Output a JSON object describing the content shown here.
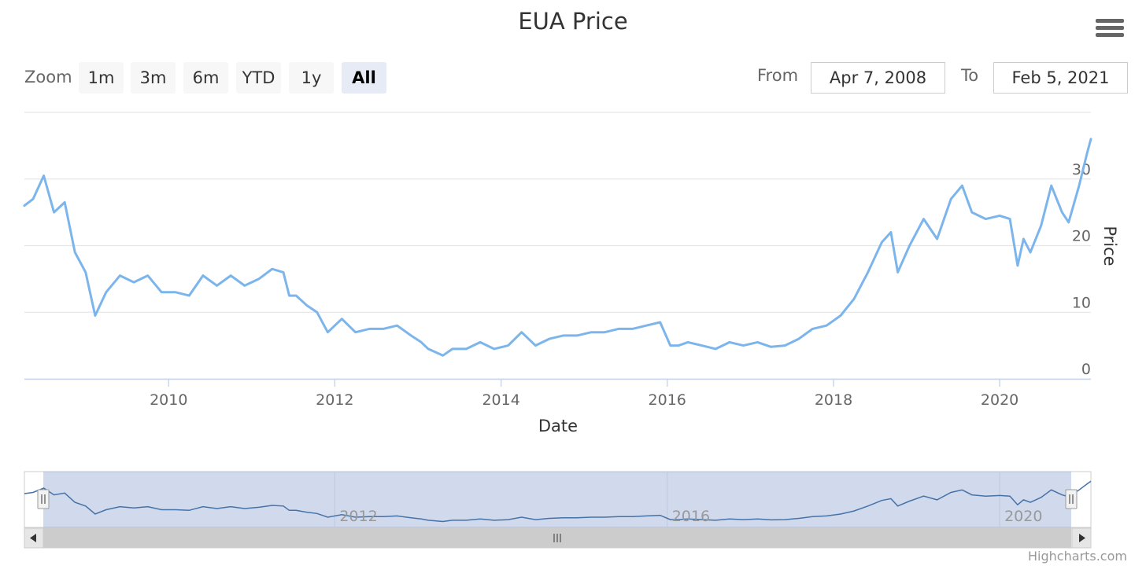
{
  "title": "EUA Price",
  "menu": {
    "icon": "hamburger-menu-icon"
  },
  "zoom": {
    "label": "Zoom",
    "buttons": [
      "1m",
      "3m",
      "6m",
      "YTD",
      "1y",
      "All"
    ],
    "selected": "All"
  },
  "range": {
    "from_label": "From",
    "from_value": "Apr 7, 2008",
    "to_label": "To",
    "to_value": "Feb 5, 2021"
  },
  "credit": "Highcharts.com",
  "colors": {
    "series": "#7cb5ec",
    "navigator_series": "#4572a7",
    "navigator_mask": "rgba(102,133,194,0.3)",
    "grid": "#e6e6e6",
    "axis_text": "#666666"
  },
  "chart_data": {
    "type": "line",
    "series": [
      {
        "name": "",
        "x": [
          "2008-04-07",
          "2008-05-15",
          "2008-07-01",
          "2008-08-15",
          "2008-10-01",
          "2008-11-15",
          "2009-01-01",
          "2009-02-12",
          "2009-04-01",
          "2009-06-01",
          "2009-08-01",
          "2009-10-01",
          "2009-12-01",
          "2010-02-01",
          "2010-04-01",
          "2010-06-01",
          "2010-08-01",
          "2010-10-01",
          "2010-12-01",
          "2011-02-01",
          "2011-04-01",
          "2011-05-20",
          "2011-06-15",
          "2011-07-15",
          "2011-09-01",
          "2011-10-15",
          "2011-12-01",
          "2012-02-01",
          "2012-04-01",
          "2012-06-01",
          "2012-08-01",
          "2012-10-01",
          "2012-12-01",
          "2013-01-15",
          "2013-02-15",
          "2013-04-20",
          "2013-06-01",
          "2013-08-01",
          "2013-10-01",
          "2013-12-01",
          "2014-02-01",
          "2014-04-01",
          "2014-06-01",
          "2014-08-01",
          "2014-10-01",
          "2014-12-01",
          "2015-02-01",
          "2015-04-01",
          "2015-06-01",
          "2015-08-01",
          "2015-10-01",
          "2015-12-01",
          "2016-01-15",
          "2016-02-20",
          "2016-04-01",
          "2016-06-01",
          "2016-08-01",
          "2016-10-01",
          "2016-12-01",
          "2017-02-01",
          "2017-04-01",
          "2017-06-01",
          "2017-08-01",
          "2017-10-01",
          "2017-12-01",
          "2018-02-01",
          "2018-04-01",
          "2018-06-01",
          "2018-08-01",
          "2018-09-10",
          "2018-10-10",
          "2018-12-01",
          "2019-02-01",
          "2019-04-01",
          "2019-06-01",
          "2019-07-20",
          "2019-09-01",
          "2019-11-01",
          "2020-01-01",
          "2020-02-15",
          "2020-03-20",
          "2020-04-15",
          "2020-05-15",
          "2020-07-01",
          "2020-08-15",
          "2020-10-01",
          "2020-10-30",
          "2020-12-15",
          "2021-01-20",
          "2021-02-05"
        ],
        "y": [
          26,
          27,
          30.5,
          25,
          26.5,
          19,
          16,
          9.5,
          13,
          15.5,
          14.5,
          15.5,
          13,
          13,
          12.5,
          15.5,
          14,
          15.5,
          14,
          15,
          16.5,
          16,
          12.5,
          12.5,
          11,
          10,
          7,
          9,
          7,
          7.5,
          7.5,
          8,
          6.5,
          5.5,
          4.5,
          3.5,
          4.5,
          4.5,
          5.5,
          4.5,
          5,
          7,
          5,
          6,
          6.5,
          6.5,
          7,
          7,
          7.5,
          7.5,
          8,
          8.5,
          5,
          5,
          5.5,
          5,
          4.5,
          5.5,
          5,
          5.5,
          4.8,
          5,
          6,
          7.5,
          8,
          9.5,
          12,
          16,
          20.5,
          22,
          16,
          20,
          24,
          21,
          27,
          29,
          25,
          24,
          24.5,
          24,
          17,
          21,
          19,
          23,
          29,
          25,
          23.5,
          29,
          34,
          36
        ]
      }
    ],
    "x_axis": {
      "label": "Date",
      "ticks": [
        "2010",
        "2012",
        "2014",
        "2016",
        "2018",
        "2020"
      ],
      "range": [
        "2008-04-07",
        "2021-02-05"
      ]
    },
    "y_axis": {
      "label": "Price",
      "ticks": [
        0,
        10,
        20,
        30
      ],
      "range": [
        0,
        40
      ],
      "side": "right"
    },
    "navigator": {
      "ticks": [
        "2012",
        "2016",
        "2020"
      ],
      "selection": [
        "2008-04-07",
        "2021-02-05"
      ]
    },
    "grid": true,
    "legend": "none"
  }
}
